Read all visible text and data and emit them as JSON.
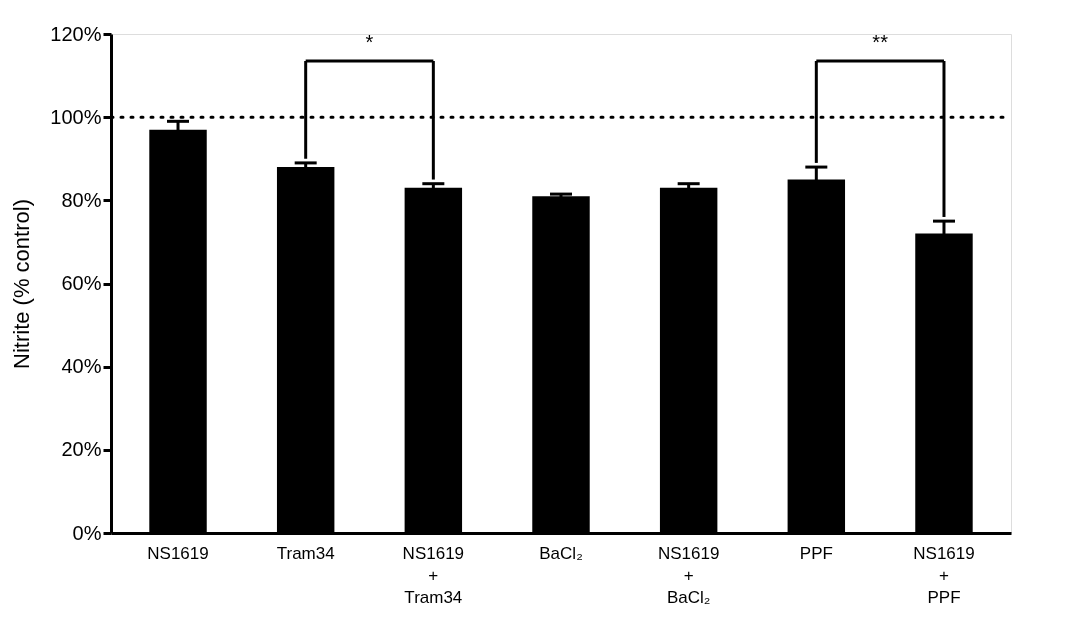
{
  "chart_data": {
    "type": "bar",
    "ylabel": "Nitrite (% control)",
    "categories": [
      "NS1619",
      "Tram34",
      "NS1619\n+\nTram34",
      "BaCl₂",
      "NS1619\n+\nBaCl₂",
      "PPF",
      "NS1619\n+\nPPF"
    ],
    "values": [
      97,
      88,
      83,
      81,
      83,
      85,
      72
    ],
    "errors": [
      2,
      1,
      1,
      0.5,
      1,
      3,
      3
    ],
    "color": "#000000",
    "ylim": [
      0,
      120
    ],
    "yticks": [
      {
        "value": 0,
        "label": "0%"
      },
      {
        "value": 20,
        "label": "20%"
      },
      {
        "value": 40,
        "label": "40%"
      },
      {
        "value": 60,
        "label": "60%"
      },
      {
        "value": 80,
        "label": "80%"
      },
      {
        "value": 100,
        "label": "100%"
      },
      {
        "value": 120,
        "label": "120%"
      }
    ],
    "ref_lines": [
      {
        "axis": "y",
        "value": 100,
        "line_style": "dotted",
        "color": "#000000"
      }
    ],
    "annotations": [
      "*",
      "**"
    ],
    "grid": false
  }
}
